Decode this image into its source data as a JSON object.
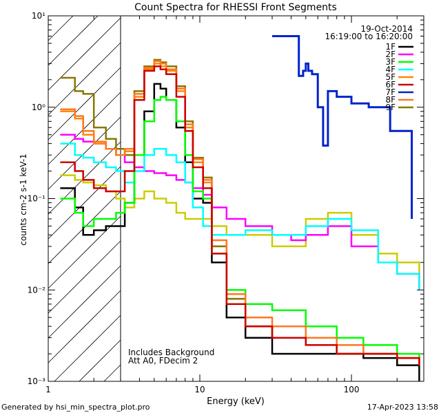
{
  "chart_data": {
    "type": "line",
    "title": "Count Spectra for RHESSI Front Segments",
    "xlabel": "Energy (keV)",
    "ylabel": "counts cm-2 s-1 keV-1",
    "x_scale": "log",
    "y_scale": "log",
    "xlim": [
      1,
      300
    ],
    "ylim": [
      0.001,
      10
    ],
    "x_ticks": [
      1,
      10,
      100
    ],
    "x_tick_labels": [
      "1",
      "10",
      "100"
    ],
    "y_ticks": [
      0.001,
      0.01,
      0.1,
      1,
      10
    ],
    "y_tick_labels": [
      "10⁻³",
      "10⁻²",
      "10⁻¹",
      "10⁰",
      "10¹"
    ],
    "hatched_region_keV": [
      1,
      3
    ],
    "legend_position": "top-right",
    "annotations": {
      "date": "19-Oct-2014",
      "time_range": "16:19:00 to 16:20:00",
      "background_note": "Includes Background",
      "attenuator_note": "Att A0, FDecim 2"
    },
    "footer_left": "Generated by hsi_min_spectra_plot.pro",
    "footer_right": "17-Apr-2023 13:58",
    "series": [
      {
        "name": "1F",
        "color": "#000000",
        "x": [
          1.2,
          1.5,
          1.7,
          2.0,
          2.4,
          2.8,
          3.2,
          3.7,
          4.3,
          5.0,
          5.5,
          6.0,
          7.0,
          8.0,
          9.0,
          10.5,
          12,
          15,
          20,
          30,
          50,
          80,
          120,
          200,
          280
        ],
        "y": [
          0.13,
          0.08,
          0.04,
          0.045,
          0.05,
          0.05,
          0.09,
          0.3,
          0.9,
          1.8,
          1.6,
          1.2,
          0.6,
          0.25,
          0.1,
          0.09,
          0.02,
          0.005,
          0.003,
          0.002,
          0.002,
          0.002,
          0.0018,
          0.0015,
          0.001
        ]
      },
      {
        "name": "2F",
        "color": "#ff00ff",
        "x": [
          1.2,
          1.5,
          1.7,
          2.0,
          2.4,
          2.8,
          3.2,
          3.7,
          4.3,
          5.0,
          6.0,
          7.0,
          8.0,
          9.0,
          10.5,
          12,
          15,
          20,
          30,
          40,
          50,
          70,
          100,
          150,
          200,
          280
        ],
        "y": [
          0.5,
          0.45,
          0.42,
          0.4,
          0.35,
          0.3,
          0.25,
          0.22,
          0.2,
          0.19,
          0.18,
          0.16,
          0.15,
          0.13,
          0.11,
          0.08,
          0.06,
          0.05,
          0.04,
          0.035,
          0.04,
          0.05,
          0.03,
          0.02,
          0.015,
          0.01
        ]
      },
      {
        "name": "3F",
        "color": "#00ff00",
        "x": [
          1.2,
          1.5,
          1.7,
          2.0,
          2.4,
          2.8,
          3.2,
          3.7,
          4.3,
          5.0,
          5.5,
          6.0,
          7.0,
          8.0,
          9.0,
          10.5,
          12,
          15,
          20,
          30,
          50,
          80,
          120,
          200,
          280
        ],
        "y": [
          0.1,
          0.07,
          0.05,
          0.06,
          0.06,
          0.07,
          0.09,
          0.3,
          0.7,
          1.2,
          1.3,
          1.2,
          0.7,
          0.3,
          0.12,
          0.1,
          0.025,
          0.01,
          0.007,
          0.006,
          0.004,
          0.003,
          0.0025,
          0.002,
          0.0015
        ]
      },
      {
        "name": "4F",
        "color": "#00ffff",
        "x": [
          1.2,
          1.5,
          1.7,
          2.0,
          2.4,
          2.8,
          3.2,
          3.7,
          4.3,
          5.0,
          6.0,
          7.0,
          8.0,
          9.0,
          10.5,
          12,
          15,
          20,
          30,
          40,
          50,
          70,
          100,
          150,
          200,
          280
        ],
        "y": [
          0.4,
          0.3,
          0.28,
          0.25,
          0.22,
          0.2,
          0.15,
          0.2,
          0.3,
          0.35,
          0.3,
          0.25,
          0.15,
          0.08,
          0.05,
          0.04,
          0.04,
          0.045,
          0.04,
          0.04,
          0.05,
          0.06,
          0.045,
          0.02,
          0.015,
          0.01
        ]
      },
      {
        "name": "5F",
        "color": "#ff8800",
        "x": [
          1.2,
          1.5,
          1.7,
          2.0,
          2.4,
          2.8,
          3.2,
          3.7,
          4.3,
          5.0,
          5.5,
          6.0,
          7.0,
          8.0,
          9.0,
          10.5,
          12,
          15,
          20,
          30,
          50,
          80,
          120,
          200,
          280
        ],
        "y": [
          0.9,
          0.75,
          0.5,
          0.4,
          0.35,
          0.3,
          0.33,
          1.3,
          2.6,
          3.0,
          2.8,
          2.5,
          1.5,
          0.6,
          0.25,
          0.15,
          0.03,
          0.008,
          0.004,
          0.003,
          0.0025,
          0.002,
          0.002,
          0.0018,
          0.0015
        ]
      },
      {
        "name": "6F",
        "color": "#cc0000",
        "x": [
          1.2,
          1.5,
          1.7,
          2.0,
          2.4,
          2.8,
          3.2,
          3.7,
          4.3,
          5.0,
          5.5,
          6.0,
          7.0,
          8.0,
          9.0,
          10.5,
          12,
          15,
          20,
          30,
          50,
          80,
          120,
          200,
          280
        ],
        "y": [
          0.25,
          0.2,
          0.16,
          0.13,
          0.12,
          0.12,
          0.2,
          1.2,
          2.5,
          2.8,
          2.6,
          2.3,
          1.3,
          0.55,
          0.22,
          0.13,
          0.025,
          0.007,
          0.004,
          0.003,
          0.0025,
          0.002,
          0.002,
          0.0018,
          0.0015
        ]
      },
      {
        "name": "7F",
        "color": "#0022cc",
        "x": [
          30,
          45,
          48,
          50,
          52,
          55,
          60,
          65,
          70,
          80,
          100,
          130,
          180,
          250
        ],
        "y": [
          6.0,
          2.2,
          2.5,
          3.0,
          2.5,
          2.3,
          1.0,
          0.38,
          1.5,
          1.3,
          1.1,
          1.0,
          0.55,
          0.06
        ]
      },
      {
        "name": "8F",
        "color": "#ff7722",
        "x": [
          1.2,
          1.5,
          1.7,
          2.0,
          2.4,
          2.8,
          3.2,
          3.7,
          4.3,
          5.0,
          5.5,
          6.0,
          7.0,
          8.0,
          9.0,
          10.5,
          12,
          15,
          20,
          30,
          50,
          80,
          120,
          200,
          280
        ],
        "y": [
          0.95,
          0.8,
          0.55,
          0.42,
          0.35,
          0.3,
          0.35,
          1.4,
          2.7,
          3.2,
          3.0,
          2.6,
          1.6,
          0.65,
          0.27,
          0.16,
          0.035,
          0.009,
          0.005,
          0.004,
          0.003,
          0.0025,
          0.002,
          0.0018,
          0.0015
        ]
      },
      {
        "name": "9F",
        "color": "#887700",
        "x": [
          1.2,
          1.5,
          1.7,
          2.0,
          2.4,
          2.8,
          3.2,
          3.7,
          4.3,
          5.0,
          5.5,
          6.0,
          7.0,
          8.0,
          9.0,
          10.5,
          12,
          15,
          20,
          30,
          50,
          80,
          120,
          200,
          280
        ],
        "y": [
          2.1,
          1.5,
          1.4,
          0.6,
          0.45,
          0.35,
          0.3,
          1.5,
          2.8,
          3.3,
          3.1,
          2.8,
          1.7,
          0.7,
          0.28,
          0.17,
          0.03,
          0.008,
          0.004,
          0.003,
          0.0025,
          0.002,
          0.002,
          0.0018,
          0.0015
        ]
      },
      {
        "name": "",
        "color": "#cccc00",
        "x": [
          1.2,
          1.5,
          1.7,
          2.0,
          2.4,
          2.8,
          3.2,
          3.7,
          4.3,
          5.0,
          6.0,
          7.0,
          8.0,
          9.0,
          10.5,
          12,
          15,
          20,
          30,
          40,
          50,
          70,
          100,
          150,
          200,
          280
        ],
        "y": [
          0.18,
          0.16,
          0.15,
          0.14,
          0.12,
          0.1,
          0.08,
          0.1,
          0.12,
          0.1,
          0.09,
          0.07,
          0.06,
          0.06,
          0.06,
          0.05,
          0.04,
          0.04,
          0.03,
          0.03,
          0.06,
          0.07,
          0.04,
          0.025,
          0.02,
          0.015
        ]
      }
    ]
  }
}
